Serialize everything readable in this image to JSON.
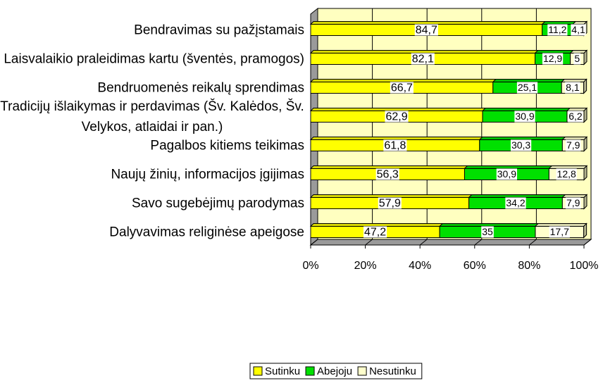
{
  "chart_data": {
    "type": "bar",
    "orientation": "horizontal",
    "stacked": true,
    "categories": [
      "Bendravimas su pažįstamais",
      "Laisvalaikio praleidimas kartu (šventės, pramogos)",
      "Bendruomenės reikalų sprendimas",
      "Tradicijų išlaikymas ir perdavimas (Šv. Kalėdos, Šv. Velykos, atlaidai ir pan.)",
      "Pagalbos kitiems teikimas",
      "Naujų žinių, informacijos įgijimas",
      "Savo sugebėjimų parodymas",
      "Dalyvavimas religinėse apeigose"
    ],
    "series": [
      {
        "name": "Sutinku",
        "color": "#ffff00",
        "values": [
          84.7,
          82.1,
          66.7,
          62.9,
          61.8,
          56.3,
          57.9,
          47.2
        ],
        "value_labels": [
          "84,7",
          "82,1",
          "66,7",
          "62,9",
          "61,8",
          "56,3",
          "57,9",
          "47,2"
        ]
      },
      {
        "name": "Abejoju",
        "color": "#00e000",
        "values": [
          11.2,
          12.9,
          25.1,
          30.9,
          30.3,
          30.9,
          34.2,
          35
        ],
        "value_labels": [
          "11,2",
          "12,9",
          "25,1",
          "30,9",
          "30,3",
          "30,9",
          "34,2",
          "35"
        ]
      },
      {
        "name": "Nesutinku",
        "color": "#ffffcc",
        "values": [
          4.1,
          5,
          8.1,
          6.2,
          7.9,
          12.8,
          7.9,
          17.7
        ],
        "value_labels": [
          "4,1",
          "5",
          "8,1",
          "6,2",
          "7,9",
          "12,8",
          "7,9",
          "17,7"
        ]
      }
    ],
    "xlim": [
      0,
      100
    ],
    "xticks": [
      {
        "value": 0,
        "label": "0%"
      },
      {
        "value": 20,
        "label": "20%"
      },
      {
        "value": 40,
        "label": "40%"
      },
      {
        "value": 60,
        "label": "60%"
      },
      {
        "value": 80,
        "label": "80%"
      },
      {
        "value": 100,
        "label": "100%"
      }
    ],
    "grid": true,
    "legend": "bottom"
  }
}
